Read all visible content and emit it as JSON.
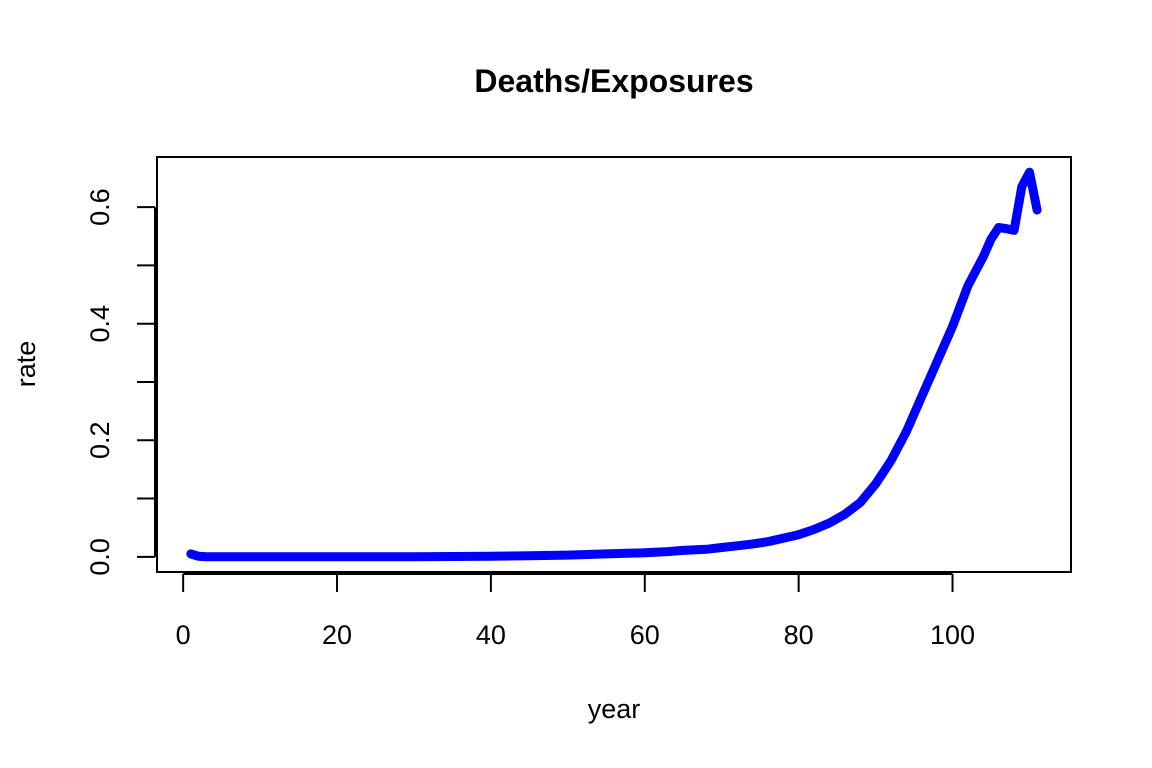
{
  "chart_data": {
    "type": "line",
    "title": "Deaths/Exposures",
    "xlabel": "year",
    "ylabel": "rate",
    "xlim": [
      1,
      111
    ],
    "ylim": [
      0,
      0.66
    ],
    "xticks": [
      0,
      20,
      40,
      60,
      80,
      100
    ],
    "yticks": [
      0.0,
      0.2,
      0.4,
      0.6
    ],
    "ytick_labels": [
      "0.0",
      "0.2",
      "0.4",
      "0.6"
    ],
    "grid": false,
    "legend": "none",
    "series": [
      {
        "color": "#0000ff",
        "x": [
          1,
          2,
          3,
          5,
          10,
          20,
          30,
          40,
          45,
          50,
          55,
          60,
          63,
          65,
          68,
          70,
          72,
          74,
          76,
          78,
          80,
          82,
          84,
          86,
          88,
          90,
          92,
          94,
          96,
          98,
          100,
          102,
          104,
          105,
          106,
          107,
          108,
          109,
          110,
          111
        ],
        "y": [
          0.005,
          0.001,
          0.0,
          0.0,
          0.0,
          0.0,
          0.0,
          0.001,
          0.002,
          0.003,
          0.005,
          0.007,
          0.009,
          0.011,
          0.013,
          0.016,
          0.019,
          0.022,
          0.026,
          0.032,
          0.038,
          0.047,
          0.058,
          0.073,
          0.093,
          0.125,
          0.165,
          0.215,
          0.275,
          0.335,
          0.395,
          0.465,
          0.515,
          0.545,
          0.565,
          0.563,
          0.56,
          0.635,
          0.66,
          0.595
        ]
      }
    ]
  }
}
